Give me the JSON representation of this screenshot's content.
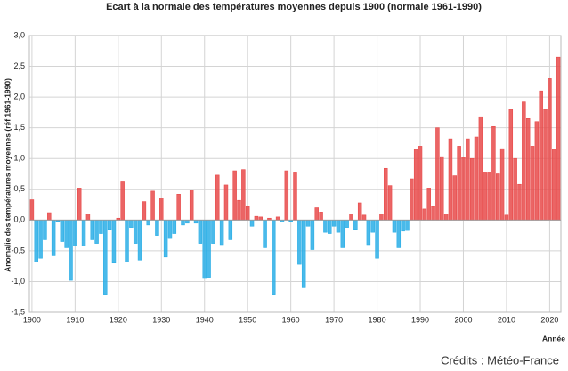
{
  "chart_data": {
    "type": "bar",
    "title": "Ecart à la normale des températures moyennes depuis 1900 (normale 1961-1990)",
    "y_label": "Anomalie des températures moyennes (réf 1961-1990)",
    "x_label": "Année",
    "credit": "Crédits : Météo-France",
    "x": [
      1900,
      1901,
      1902,
      1903,
      1904,
      1905,
      1906,
      1907,
      1908,
      1909,
      1910,
      1911,
      1912,
      1913,
      1914,
      1915,
      1916,
      1917,
      1918,
      1919,
      1920,
      1921,
      1922,
      1923,
      1924,
      1925,
      1926,
      1927,
      1928,
      1929,
      1930,
      1931,
      1932,
      1933,
      1934,
      1935,
      1936,
      1937,
      1938,
      1939,
      1940,
      1941,
      1942,
      1943,
      1944,
      1945,
      1946,
      1947,
      1948,
      1949,
      1950,
      1951,
      1952,
      1953,
      1954,
      1955,
      1956,
      1957,
      1958,
      1959,
      1960,
      1961,
      1962,
      1963,
      1964,
      1965,
      1966,
      1967,
      1968,
      1969,
      1970,
      1971,
      1972,
      1973,
      1974,
      1975,
      1976,
      1977,
      1978,
      1979,
      1980,
      1981,
      1982,
      1983,
      1984,
      1985,
      1986,
      1987,
      1988,
      1989,
      1990,
      1991,
      1992,
      1993,
      1994,
      1995,
      1996,
      1997,
      1998,
      1999,
      2000,
      2001,
      2002,
      2003,
      2004,
      2005,
      2006,
      2007,
      2008,
      2009,
      2010,
      2011,
      2012,
      2013,
      2014,
      2015,
      2016,
      2017,
      2018,
      2019,
      2020,
      2021,
      2022
    ],
    "values": [
      0.33,
      -0.68,
      -0.62,
      -0.32,
      0.12,
      -0.58,
      -0.02,
      -0.35,
      -0.45,
      -0.98,
      -0.42,
      0.52,
      -0.42,
      0.1,
      -0.32,
      -0.38,
      -0.22,
      -1.22,
      -0.15,
      -0.7,
      0.03,
      0.62,
      -0.68,
      -0.12,
      -0.38,
      -0.65,
      0.3,
      -0.08,
      0.47,
      -0.25,
      0.36,
      -0.6,
      -0.3,
      -0.22,
      0.42,
      -0.08,
      -0.05,
      0.49,
      -0.05,
      -0.38,
      -0.95,
      -0.93,
      -0.38,
      0.73,
      -0.4,
      0.57,
      -0.32,
      0.8,
      0.32,
      0.82,
      0.22,
      -0.1,
      0.06,
      0.05,
      -0.45,
      0.03,
      -1.22,
      0.05,
      -0.03,
      0.8,
      -0.02,
      0.78,
      -0.72,
      -1.1,
      -0.1,
      -0.48,
      0.2,
      0.13,
      -0.2,
      -0.22,
      -0.1,
      -0.2,
      -0.45,
      -0.12,
      0.1,
      -0.15,
      0.28,
      0.08,
      -0.4,
      -0.2,
      -0.62,
      0.1,
      0.84,
      0.56,
      -0.2,
      -0.45,
      -0.18,
      -0.17,
      0.67,
      1.15,
      1.2,
      0.18,
      0.52,
      0.22,
      1.5,
      1.03,
      0.1,
      1.32,
      0.72,
      1.2,
      1.02,
      1.32,
      1.0,
      1.35,
      1.68,
      0.78,
      0.78,
      1.52,
      0.75,
      1.16,
      0.08,
      1.8,
      1.0,
      0.58,
      1.92,
      1.65,
      1.2,
      1.6,
      2.1,
      1.8,
      2.3,
      1.15,
      2.65
    ],
    "positive_color": "#e84a4a",
    "negative_color": "#2aaee6",
    "xlim": [
      1899.4,
      2022.6
    ],
    "xticks": [
      1900,
      1910,
      1920,
      1930,
      1940,
      1950,
      1960,
      1970,
      1980,
      1990,
      2000,
      2010,
      2020
    ],
    "ylim": [
      -1.5,
      3.0
    ],
    "yticks": [
      {
        "value": -1.5,
        "label": "-1,5"
      },
      {
        "value": -1,
        "label": "-1,0"
      },
      {
        "value": -0.5,
        "label": "-0,5"
      },
      {
        "value": 0,
        "label": "0,0"
      },
      {
        "value": 0.5,
        "label": "0,5"
      },
      {
        "value": 1,
        "label": "1,0"
      },
      {
        "value": 1.5,
        "label": "1,5"
      },
      {
        "value": 2,
        "label": "2,0"
      },
      {
        "value": 2.5,
        "label": "2,5"
      },
      {
        "value": 3,
        "label": "3,0"
      }
    ],
    "grid": true
  }
}
